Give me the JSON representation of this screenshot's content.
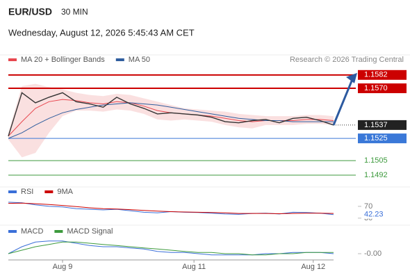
{
  "header": {
    "symbol": "EUR/USD",
    "interval": "30 MIN",
    "timestamp": "Wednesday, August 12, 2026 5:45:43 AM CET",
    "source": "Research © 2026 Trading Central"
  },
  "chart_data": [
    {
      "type": "line",
      "values": [
        1.1527,
        1.1566,
        1.1557,
        1.1562,
        1.1566,
        1.1558,
        1.1556,
        1.1553,
        1.1562,
        1.1556,
        1.1552,
        1.1547,
        1.1548,
        1.1547,
        1.1546,
        1.1544,
        1.154,
        1.1539,
        1.1541,
        1.1542,
        1.1539,
        1.1543,
        1.1544,
        1.1541,
        1.1537
      ],
      "color": "#333333",
      "series": [
        {
          "name": "MA 20 + Bollinger Bands",
          "color": "#e8474f",
          "values": [
            1.1527,
            1.154,
            1.1552,
            1.1558,
            1.156,
            1.1559,
            1.1557,
            1.1556,
            1.1558,
            1.1557,
            1.1554,
            1.155,
            1.1548,
            1.1547,
            1.1546,
            1.1545,
            1.1543,
            1.1541,
            1.154,
            1.1541,
            1.1541,
            1.1541,
            1.1542,
            1.1542,
            1.1541
          ]
        },
        {
          "name": "MA 50",
          "color": "#2f5d9e",
          "values": [
            1.1525,
            1.153,
            1.1537,
            1.1543,
            1.1548,
            1.1551,
            1.1553,
            1.1555,
            1.1556,
            1.1557,
            1.1556,
            1.1555,
            1.1553,
            1.1551,
            1.1549,
            1.1547,
            1.1545,
            1.1543,
            1.1542,
            1.1541,
            1.1541,
            1.154,
            1.154,
            1.154,
            1.154
          ]
        }
      ],
      "bands": {
        "color": "#f8d3d3",
        "upper": [
          1.153,
          1.1572,
          1.1574,
          1.1571,
          1.1569,
          1.1566,
          1.1564,
          1.1563,
          1.1565,
          1.1564,
          1.1561,
          1.1558,
          1.1555,
          1.1552,
          1.1551,
          1.155,
          1.1549,
          1.1547,
          1.1546,
          1.1545,
          1.1545,
          1.1545,
          1.1546,
          1.1546,
          1.1545
        ],
        "lower": [
          1.1524,
          1.1508,
          1.1512,
          1.153,
          1.1545,
          1.155,
          1.155,
          1.1549,
          1.1551,
          1.155,
          1.1547,
          1.1542,
          1.1541,
          1.1542,
          1.1541,
          1.154,
          1.1537,
          1.1535,
          1.1534,
          1.1537,
          1.1537,
          1.1537,
          1.1538,
          1.1538,
          1.1537
        ]
      },
      "levels": [
        {
          "value": 1.1582,
          "label": "1.1582",
          "color": "#cc0000",
          "boxed": true
        },
        {
          "value": 1.157,
          "label": "1.1570",
          "color": "#cc0000",
          "boxed": true
        },
        {
          "value": 1.1525,
          "label": "1.1525",
          "color": "#3a78d8",
          "boxed": true
        },
        {
          "value": 1.1505,
          "label": "1.1505",
          "color": "#3d9a3d",
          "boxed": false
        },
        {
          "value": 1.1492,
          "label": "1.1492",
          "color": "#3d9a3d",
          "boxed": false
        }
      ],
      "ylim": [
        1.1487,
        1.159
      ],
      "xlim": [
        0,
        24
      ],
      "xticks": [
        {
          "value": 4,
          "label": "Aug 9"
        },
        {
          "value": 13.7,
          "label": "Aug 11"
        },
        {
          "value": 22.5,
          "label": "Aug 12"
        }
      ]
    },
    {
      "type": "line",
      "series": [
        {
          "name": "RSI",
          "color": "#3a6fd8",
          "values": [
            84,
            82,
            75,
            70,
            68,
            62,
            60,
            58,
            60,
            55,
            50,
            48,
            52,
            50,
            49,
            47,
            44,
            43,
            46,
            47,
            44,
            50,
            49,
            47,
            42.23
          ]
        },
        {
          "name": "9MA",
          "color": "#cc0000",
          "values": [
            80,
            81,
            79,
            76,
            73,
            69,
            65,
            62,
            61,
            59,
            56,
            54,
            52,
            51,
            50,
            49,
            48,
            46,
            46,
            46,
            45,
            46,
            47,
            47,
            46
          ]
        }
      ],
      "ylim": [
        25,
        98
      ],
      "yticks": [
        70,
        30
      ]
    },
    {
      "type": "line",
      "series": [
        {
          "name": "MACD",
          "color": "#3a6fd8",
          "values": [
            0,
            0.0006,
            0.001,
            0.0011,
            0.0011,
            0.0009,
            0.0007,
            0.0006,
            0.0006,
            0.0005,
            0.0004,
            0.0002,
            0.0001,
            0.0001,
            0.0,
            -0.0001,
            -0.0001,
            -0.0001,
            -0.0001,
            0,
            0,
            0.0001,
            0.0001,
            0.0001,
            0
          ]
        },
        {
          "name": "MACD Signal",
          "color": "#3d9a3d",
          "values": [
            0,
            0.0003,
            0.0006,
            0.0008,
            0.001,
            0.001,
            0.0009,
            0.0008,
            0.0007,
            0.0006,
            0.0005,
            0.0004,
            0.0003,
            0.0002,
            0.0001,
            0.0001,
            0,
            0,
            -0.0001,
            -0.0001,
            0,
            0,
            0.0001,
            0.0001,
            0.0001
          ]
        }
      ],
      "ylim": [
        -0.0003,
        0.0015
      ],
      "yticks": [
        {
          "value": 0,
          "label": "-0.00"
        }
      ]
    }
  ]
}
